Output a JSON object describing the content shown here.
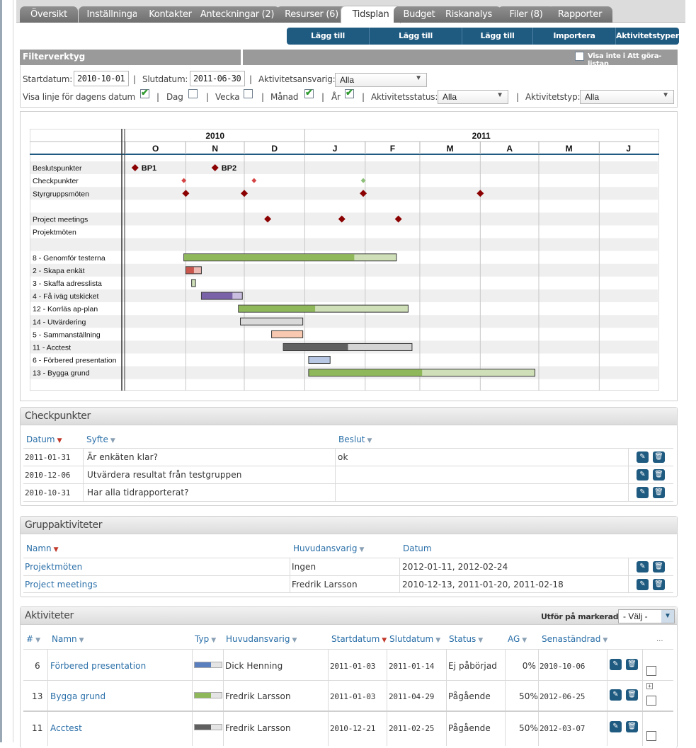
{
  "tabs": [
    {
      "label": "Översikt"
    },
    {
      "label": "Inställningar"
    },
    {
      "label": "Kontakter"
    },
    {
      "label": "Anteckningar (2)"
    },
    {
      "label": "Resurser (6)"
    },
    {
      "label": "Tidsplan"
    },
    {
      "label": "Budget"
    },
    {
      "label": "Riskanalys"
    },
    {
      "label": "Filer (8)"
    },
    {
      "label": "Rapporter"
    }
  ],
  "active_tab": "Tidsplan",
  "actions": [
    "Lägg till checkpunkt",
    "Lägg till gruppaktivitet",
    "Lägg till aktivitet",
    "Importera aktiviteter",
    "Aktivitetstyper"
  ],
  "filter": {
    "title": "Filterverktyg",
    "hide_todo_label": "Visa inte i Att göra-listan",
    "start_label": "Startdatum:",
    "start_value": "2010-10-01",
    "end_label": "Slutdatum:",
    "end_value": "2011-06-30",
    "responsible_label": "Aktivitetsansvarig:",
    "responsible_value": "Alla",
    "show_today_label": "Visa linje för dagens datum",
    "day_label": "Dag",
    "week_label": "Vecka",
    "month_label": "Månad",
    "year_label": "År",
    "status_label": "Aktivitetsstatus:",
    "status_value": "Alla",
    "type_label": "Aktivitetstyp:",
    "type_value": "Alla",
    "sep": "|",
    "checks": {
      "show_today": true,
      "day": false,
      "week": false,
      "month": true,
      "year": true,
      "hide_todo": false
    }
  },
  "gantt": {
    "years": [
      {
        "label": "2010",
        "start": "2010-10-01",
        "end": "2010-12-31"
      },
      {
        "label": "2011",
        "start": "2011-01-01",
        "end": "2011-06-30"
      }
    ],
    "months": [
      "O",
      "N",
      "D",
      "J",
      "F",
      "M",
      "A",
      "M",
      "J"
    ],
    "milestone_rows": [
      {
        "label": "Beslutspunkter",
        "markers": [
          {
            "date": "2010-10-06",
            "label": "BP1"
          },
          {
            "date": "2010-11-16",
            "label": "BP2"
          }
        ]
      },
      {
        "label": "Checkpunkter",
        "markers": [
          {
            "date": "2010-10-31",
            "small": true
          },
          {
            "date": "2010-12-06",
            "small": true
          },
          {
            "date": "2011-01-31",
            "small": true,
            "color": "#8fc07a"
          }
        ]
      },
      {
        "label": "Styrgruppsmöten",
        "markers": [
          {
            "date": "2010-11-01"
          },
          {
            "date": "2010-12-01"
          },
          {
            "date": "2011-01-31"
          },
          {
            "date": "2011-04-01"
          }
        ]
      },
      {
        "label": ""
      },
      {
        "label": "Project meetings",
        "markers": [
          {
            "date": "2010-12-13"
          },
          {
            "date": "2011-01-20"
          },
          {
            "date": "2011-02-18"
          }
        ]
      },
      {
        "label": "Projektmöten",
        "markers": []
      },
      {
        "label": ""
      }
    ],
    "bars": [
      {
        "label": "8  - Genomför testerna",
        "start": "2010-10-31",
        "end": "2011-02-17",
        "progress": 0.8,
        "color": "#8fb85a",
        "light": "#cfe0b8"
      },
      {
        "label": "2  - Skapa enkät",
        "start": "2010-11-01",
        "end": "2010-11-09",
        "progress": 0.5,
        "color": "#c9574e",
        "light": "#efb9b3"
      },
      {
        "label": "3  - Skaffa adresslista",
        "start": "2010-11-04",
        "end": "2010-11-06",
        "progress": 0,
        "color": "#8fb85a",
        "light": "#cfe0b8"
      },
      {
        "label": "4  - Få iväg utskicket",
        "start": "2010-11-09",
        "end": "2010-11-30",
        "progress": 0.75,
        "color": "#7a62a8",
        "light": "#c9bde0"
      },
      {
        "label": "12 - Korrläs ap-plan",
        "start": "2010-11-28",
        "end": "2011-02-23",
        "progress": 0.45,
        "color": "#8fb85a",
        "light": "#cfe0b8"
      },
      {
        "label": "14 - Utvärdering",
        "start": "2010-11-29",
        "end": "2010-12-31",
        "progress": 0,
        "color": "#9a9a9a",
        "light": "#d9d9d9"
      },
      {
        "label": "5  - Sammanställning",
        "start": "2010-12-15",
        "end": "2010-12-31",
        "progress": 0,
        "color": "#f0a080",
        "light": "#f8c8b0"
      },
      {
        "label": "11 - Acctest",
        "start": "2010-12-21",
        "end": "2011-02-25",
        "progress": 0.5,
        "color": "#606060",
        "light": "#d4d4d4"
      },
      {
        "label": "6  - Förbered presentation",
        "start": "2011-01-03",
        "end": "2011-01-14",
        "progress": 0,
        "color": "#5a7fbf",
        "light": "#b8c8e4"
      },
      {
        "label": "13 - Bygga grund",
        "start": "2011-01-03",
        "end": "2011-04-29",
        "progress": 0.5,
        "color": "#8fb85a",
        "light": "#cfe0b8"
      }
    ]
  },
  "checkpoints": {
    "title": "Checkpunkter",
    "columns": [
      "Datum",
      "Syfte",
      "Beslut"
    ],
    "rows": [
      {
        "date": "2011-01-31",
        "purpose": "Är enkäten klar?",
        "decision": "ok"
      },
      {
        "date": "2010-12-06",
        "purpose": "Utvärdera resultat från testgruppen",
        "decision": ""
      },
      {
        "date": "2010-10-31",
        "purpose": "Har alla tidrapporterat?",
        "decision": ""
      }
    ]
  },
  "group_activities": {
    "title": "Gruppaktiviteter",
    "columns": [
      "Namn",
      "Huvudansvarig",
      "Datum"
    ],
    "rows": [
      {
        "name": "Projektmöten",
        "owner": "Ingen",
        "dates": "2012-01-11, 2012-02-24"
      },
      {
        "name": "Project meetings",
        "owner": "Fredrik Larsson",
        "dates": "2010-12-13, 2011-01-20, 2011-02-18"
      }
    ]
  },
  "activities": {
    "title": "Aktiviteter",
    "bulk_label": "Utför på markerade:",
    "bulk_value": "- Välj -",
    "columns": [
      "#",
      "Namn",
      "Typ",
      "Huvudansvarig",
      "Startdatum",
      "Slutdatum",
      "Status",
      "AG",
      "Senaständrad",
      "..."
    ],
    "rows": [
      {
        "num": "6",
        "name": "Förbered presentation",
        "type_progress": 0.6,
        "type_color": "#5a7fbf",
        "owner": "Dick Henning",
        "start": "2011-01-03",
        "end": "2011-01-14",
        "status": "Ej påbörjad",
        "ag": "0%",
        "modified": "2010-10-06"
      },
      {
        "num": "13",
        "name": "Bygga grund",
        "type_progress": 0.6,
        "type_color": "#8fb85a",
        "owner": "Fredrik Larsson",
        "start": "2011-01-03",
        "end": "2011-04-29",
        "status": "Pågående",
        "ag": "50%",
        "modified": "2012-06-25"
      },
      {
        "num": "11",
        "name": "Acctest",
        "type_progress": 0.6,
        "type_color": "#606060",
        "owner": "Fredrik Larsson",
        "start": "2010-12-21",
        "end": "2011-02-25",
        "status": "Pågående",
        "ag": "50%",
        "modified": "2012-03-07"
      }
    ]
  },
  "colors": {
    "accent": "#1f5a80",
    "link": "#2a6fa8",
    "milestone": "#8b0000"
  }
}
